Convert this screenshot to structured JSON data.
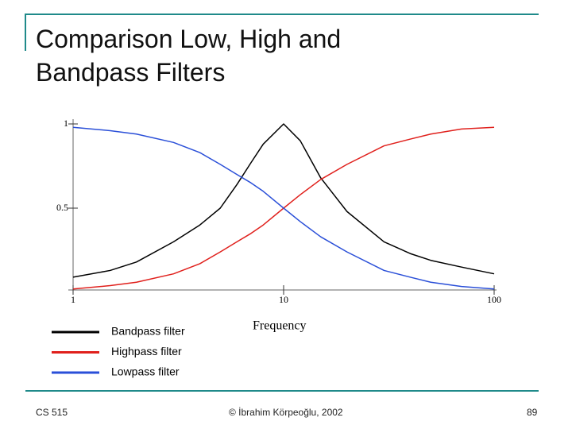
{
  "slide": {
    "title": "Comparison Low, High and Bandpass Filters",
    "footer_left": "CS 515",
    "footer_center": "© İbrahim Körpeoğlu, 2002",
    "page_number": "89"
  },
  "chart_data": {
    "type": "line",
    "xlabel": "Frequency",
    "x_scale": "log",
    "x": [
      1,
      1.5,
      2,
      3,
      4,
      5,
      6,
      7,
      8,
      10,
      12,
      15,
      20,
      30,
      40,
      50,
      70,
      100
    ],
    "xlim": [
      1,
      100
    ],
    "xticks": [
      1,
      10,
      100
    ],
    "ylim": [
      0,
      1
    ],
    "yticks": [
      0.5,
      1
    ],
    "series": [
      {
        "name": "Bandpass filter",
        "color": "#000000",
        "values": [
          0.09,
          0.13,
          0.18,
          0.3,
          0.4,
          0.5,
          0.64,
          0.77,
          0.88,
          1.0,
          0.9,
          0.68,
          0.48,
          0.3,
          0.23,
          0.19,
          0.15,
          0.11
        ]
      },
      {
        "name": "Highpass filter",
        "color": "#e0201c",
        "values": [
          0.02,
          0.04,
          0.06,
          0.11,
          0.17,
          0.24,
          0.3,
          0.35,
          0.4,
          0.5,
          0.58,
          0.67,
          0.76,
          0.87,
          0.91,
          0.94,
          0.97,
          0.98
        ]
      },
      {
        "name": "Lowpass filter",
        "color": "#2a4fd8",
        "values": [
          0.98,
          0.96,
          0.94,
          0.89,
          0.83,
          0.76,
          0.7,
          0.65,
          0.6,
          0.5,
          0.42,
          0.33,
          0.24,
          0.13,
          0.09,
          0.06,
          0.035,
          0.02
        ]
      }
    ]
  }
}
